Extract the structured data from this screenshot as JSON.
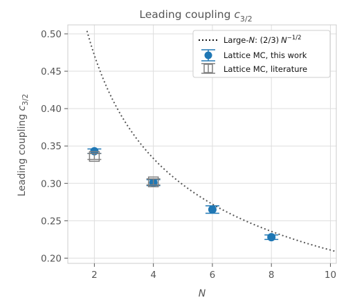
{
  "chart_data": {
    "type": "scatter",
    "title_main": "Leading coupling ",
    "title_var": "c",
    "title_sub": "3/2",
    "xlabel": "N",
    "ylabel_main": "Leading coupling ",
    "ylabel_var": "c",
    "ylabel_sub": "3/2",
    "xlim": [
      1.1,
      10.2
    ],
    "ylim": [
      0.193,
      0.512
    ],
    "xticks": [
      2,
      4,
      6,
      8,
      10
    ],
    "yticks": [
      0.2,
      0.25,
      0.3,
      0.35,
      0.4,
      0.45,
      0.5
    ],
    "ytick_labels": [
      "0.20",
      "0.25",
      "0.30",
      "0.35",
      "0.40",
      "0.45",
      "0.50"
    ],
    "grid": true,
    "legend_position": "top-right",
    "series": [
      {
        "name": "Large-N: (2/3) N^-1/2",
        "kind": "curve",
        "coefficient": 0.6667,
        "exponent": -0.5,
        "x_range": [
          1.75,
          10.2
        ],
        "color": "#555555"
      },
      {
        "name": "Lattice MC, this work",
        "kind": "points",
        "x": [
          2,
          4,
          6,
          8
        ],
        "y": [
          0.343,
          0.301,
          0.265,
          0.228
        ],
        "yerr": [
          0.003,
          0.004,
          0.005,
          0.003
        ],
        "color": "#1f77b4"
      },
      {
        "name": "Lattice MC, literature",
        "kind": "points",
        "x": [
          2,
          4
        ],
        "y": [
          0.336,
          0.302
        ],
        "yerr": [
          0.004,
          0.004
        ],
        "color": "#7f7f7f"
      }
    ],
    "legend": {
      "curve_prefix": "Large-",
      "curve_var": "N",
      "curve_mid": ": (2/3)",
      "curve_var2": "N",
      "curve_sup": "−1/2",
      "this_work": "Lattice MC, this work",
      "literature": "Lattice MC, literature"
    }
  }
}
